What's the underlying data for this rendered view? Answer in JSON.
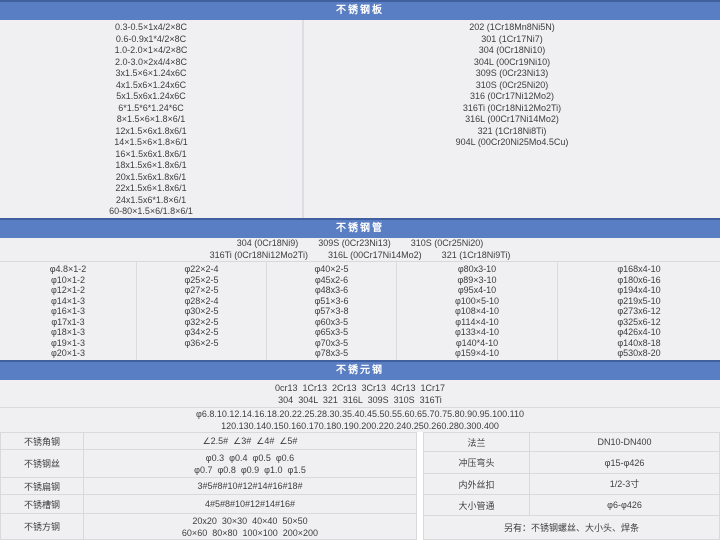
{
  "colors": {
    "header_bg": "#5a7ec3",
    "header_top_border": "#3f5f9e",
    "header_text": "#ffffff",
    "cell_bg": "#f0f0f2",
    "border": "#d9d9dc",
    "text": "#3d3d40"
  },
  "plate": {
    "title": "不锈钢板",
    "sizes": [
      "0.3-0.5×1x4/2×8C",
      "0.6-0.9x1*4/2×8C",
      "1.0-2.0×1×4/2×8C",
      "2.0-3.0×2x4/4×8C",
      "3x1.5×6×1.24x6C",
      "4x1.5x6×1.24x6C",
      "5x1.5x6x1.24x6C",
      "6*1.5*6*1.24*6C",
      "8×1.5×6×1.8×6/1",
      "12x1.5×6x1.8x6/1",
      "14×1.5×6×1.8×6/1",
      "16×1.5x6x1.8x6/1",
      "18x1.5x6×1.8x6/1",
      "20x1.5x6x1.8x6/1",
      "22x1.5x6×1.8x6/1",
      "24x1.5x6*1.8×6/1",
      "60-80×1.5×6/1.8×6/1"
    ],
    "grades": [
      "202 (1Cr18Mn8Ni5N)",
      "301 (1Cr17Ni7)",
      "304 (0Cr18Ni10)",
      "304L (00Cr19Ni10)",
      "309S (0Cr23Ni13)",
      "310S (0Cr25Ni20)",
      "316 (0Cr17Ni12Mo2)",
      "316Ti (0Cr18Ni12Mo2Ti)",
      "316L (00Cr17Ni14Mo2)",
      "321 (1Cr18Ni8Ti)",
      "904L (00Cr20Ni25Mo4.5Cu)"
    ]
  },
  "pipe": {
    "title": "不锈钢管",
    "grade_lines": [
      "304 (0Cr18Ni9)        309S (0Cr23Ni13)        310S (0Cr25Ni20)",
      "316Ti (0Cr18Ni12Mo2Ti)        316L (00Cr17Ni14Mo2)        321 (1Cr18Ni9Ti)"
    ],
    "columns": [
      [
        "φ4.8×1-2",
        "φ10×1-2",
        "φ12×1-2",
        "φ14×1-3",
        "φ16×1-3",
        "φ17x1-3",
        "φ18×1-3",
        "φ19×1-3",
        "φ20×1-3"
      ],
      [
        "φ22×2-4",
        "φ25×2-5",
        "φ27×2-5",
        "φ28×2-4",
        "φ30×2-5",
        "φ32×2-5",
        "φ34×2-5",
        "φ36×2-5"
      ],
      [
        "φ40×2-5",
        "φ45x2-6",
        "φ48x3-6",
        "φ51×3-6",
        "φ57×3-8",
        "φ60x3-5",
        "φ65x3-5",
        "φ70x3-5",
        "φ78x3-5"
      ],
      [
        "φ80x3-10",
        "φ89×3-10",
        "φ95x4-10",
        "φ100×5-10",
        "φ108×4-10",
        "φ114×4-10",
        "φ133×4-10",
        "φ140*4-10",
        "φ159×4-10"
      ],
      [
        "φ168x4-10",
        "φ180x6-16",
        "φ194x4-10",
        "φ219x5-10",
        "φ273x6-12",
        "φ325x6-12",
        "φ426x4-10",
        "φ140x8-18",
        "φ530x8-20"
      ]
    ]
  },
  "round": {
    "title": "不锈元钢",
    "grade_lines": [
      "0cr13  1Cr13  2Cr13  3Cr13  4Cr13  1Cr17",
      "304  304L  321  316L  309S  310S  316Ti"
    ],
    "diameter_lines": [
      "φ6.8.10.12.14.16.18.20.22.25.28.30.35.40.45.50.55.60.65.70.75.80.90.95.100.110",
      "120.130.140.150.160.170.180.190.200.220.240.250.260.280.300.400"
    ]
  },
  "bottom": {
    "left_rows": [
      {
        "label": "不锈角钢",
        "lines": [
          "∠2.5#  ∠3#  ∠4#  ∠5#"
        ]
      },
      {
        "label": "不锈钢丝",
        "lines": [
          "φ0.3  φ0.4  φ0.5  φ0.6",
          "φ0.7  φ0.8  φ0.9  φ1.0  φ1.5"
        ]
      },
      {
        "label": "不锈扁钢",
        "lines": [
          "3#5#8#10#12#14#16#18#"
        ]
      },
      {
        "label": "不锈槽钢",
        "lines": [
          "4#5#8#10#12#14#16#"
        ]
      },
      {
        "label": "不锈方钢",
        "lines": [
          "20x20  30×30  40×40  50×50",
          "60×60  80×80  100×100  200×200"
        ]
      }
    ],
    "right_rows": [
      {
        "label": "法兰",
        "value": "DN10-DN400"
      },
      {
        "label": "冲压弯头",
        "value": "φ15-φ426"
      },
      {
        "label": "内外丝扣",
        "value": "1/2-3寸"
      },
      {
        "label": "大小管通",
        "value": "φ6-φ426"
      }
    ],
    "note": "另有：不锈钢螺丝、大小头、焊条"
  }
}
